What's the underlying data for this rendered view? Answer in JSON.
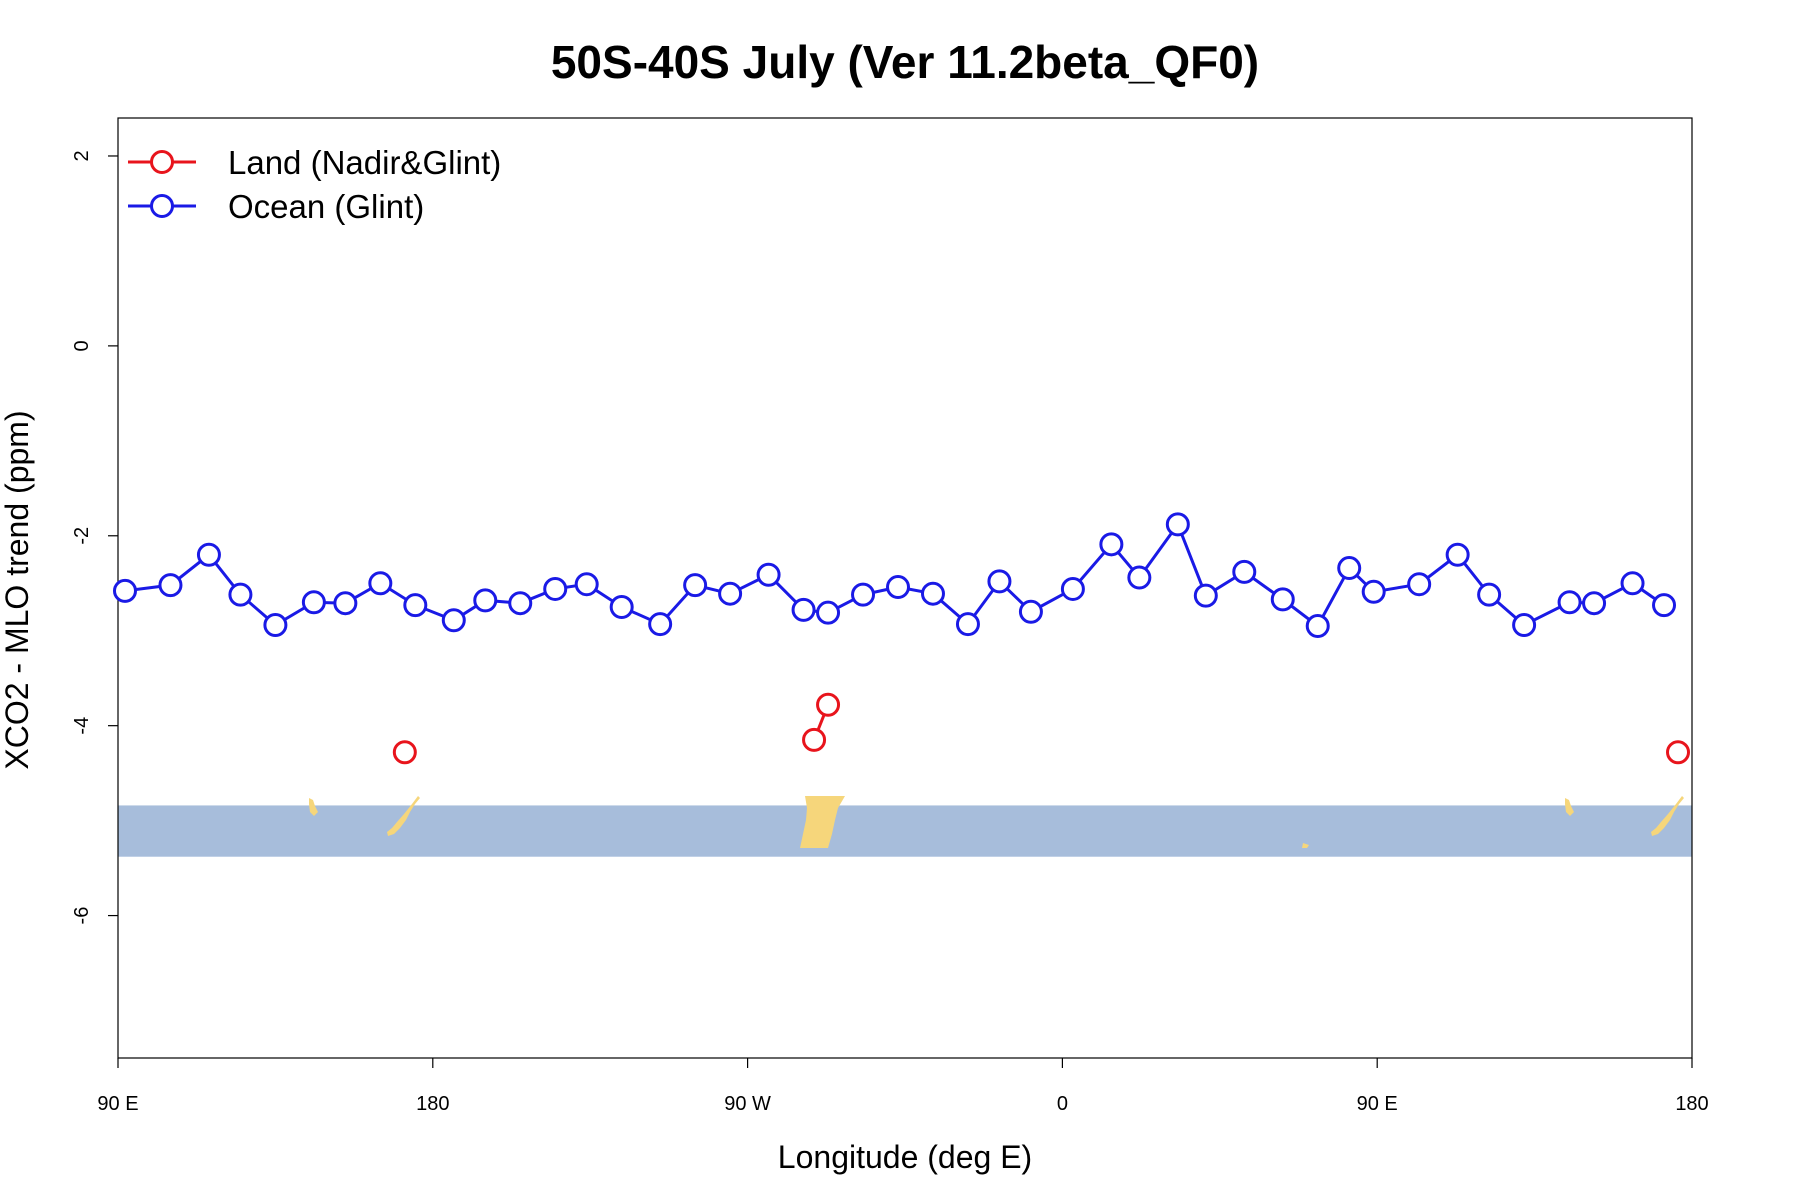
{
  "chart_data": {
    "type": "line",
    "title": "50S-40S July (Ver 11.2beta_QF0)",
    "xlabel": "Longitude (deg E)",
    "ylabel": "XCO2 - MLO trend (ppm)",
    "xlim": [
      90,
      540
    ],
    "ylim": [
      -7.5,
      2.4
    ],
    "x_ticks": [
      {
        "value": 90,
        "label": "90 E"
      },
      {
        "value": 180,
        "label": "180"
      },
      {
        "value": 270,
        "label": "90 W"
      },
      {
        "value": 360,
        "label": "0"
      },
      {
        "value": 450,
        "label": "90 E"
      },
      {
        "value": 540,
        "label": "180"
      }
    ],
    "y_ticks": [
      {
        "value": 2,
        "label": "2"
      },
      {
        "value": 0,
        "label": "0"
      },
      {
        "value": -2,
        "label": "-2"
      },
      {
        "value": -4,
        "label": "-4"
      },
      {
        "value": -6,
        "label": "-6"
      }
    ],
    "legend": {
      "position": "top-left"
    },
    "map_strip": {
      "y_range": [
        -5.38,
        -4.84
      ],
      "ocean_color": "#a7bddb",
      "land_color": "#f6d67b"
    },
    "series": [
      {
        "name": "Land (Nadir&Glint)",
        "color": "#e8141c",
        "connected": true,
        "x": [
          172,
          289,
          293,
          536
        ],
        "y": [
          -4.28,
          -4.15,
          -3.78,
          -4.28
        ]
      },
      {
        "name": "Ocean (Glint)",
        "color": "#1a1ae6",
        "connected": true,
        "x": [
          92,
          105,
          116,
          125,
          135,
          146,
          155,
          165,
          175,
          186,
          195,
          205,
          215,
          224,
          234,
          245,
          255,
          265,
          276,
          286,
          293,
          303,
          313,
          323,
          333,
          342,
          351,
          363,
          374,
          382,
          393,
          401,
          412,
          423,
          433,
          442,
          449,
          462,
          473,
          482,
          492,
          505,
          512,
          523,
          532
        ],
        "y": [
          -2.58,
          -2.52,
          -2.2,
          -2.62,
          -2.94,
          -2.7,
          -2.71,
          -2.5,
          -2.73,
          -2.89,
          -2.68,
          -2.71,
          -2.56,
          -2.51,
          -2.75,
          -2.93,
          -2.52,
          -2.61,
          -2.41,
          -2.78,
          -2.81,
          -2.62,
          -2.54,
          -2.61,
          -2.93,
          -2.48,
          -2.8,
          -2.56,
          -2.09,
          -2.44,
          -1.88,
          -2.63,
          -2.38,
          -2.67,
          -2.95,
          -2.34,
          -2.59,
          -2.51,
          -2.2,
          -2.62,
          -2.94,
          -2.7,
          -2.71,
          -2.5,
          -2.73
        ]
      }
    ]
  }
}
